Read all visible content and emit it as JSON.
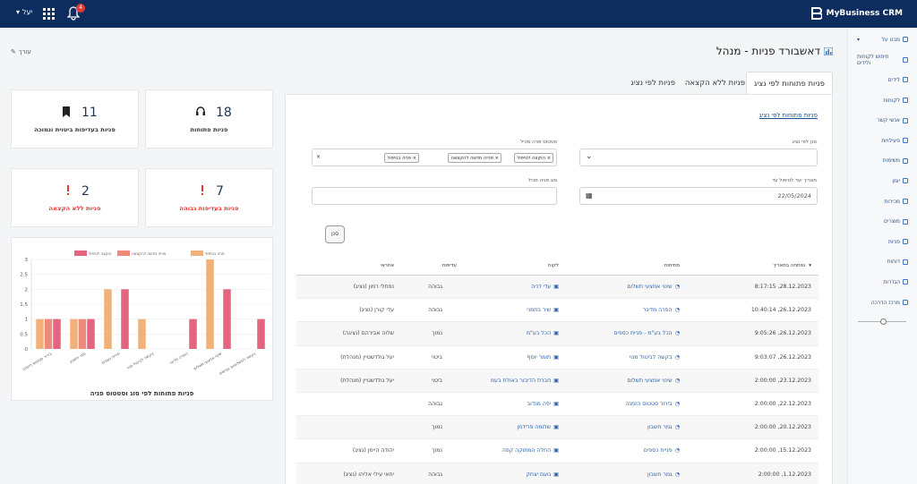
{
  "topbar": {
    "brand": "MyBusiness CRM",
    "user": "יעל",
    "notifications": "4"
  },
  "sidebar": {
    "items": [
      {
        "label": "מבט על",
        "icon": "chart-icon",
        "caret": true
      },
      {
        "label": "חיפוש לקוחות ולידים",
        "icon": "search-icon"
      },
      {
        "label": "לידים",
        "icon": "megaphone-icon"
      },
      {
        "label": "לקוחות",
        "icon": "card-icon"
      },
      {
        "label": "אנשי קשר",
        "icon": "person-icon"
      },
      {
        "label": "פעילויות",
        "icon": "list-icon"
      },
      {
        "label": "משימות",
        "icon": "tasks-icon"
      },
      {
        "label": "יומן",
        "icon": "calendar-icon"
      },
      {
        "label": "מכירות",
        "icon": "exchange-icon"
      },
      {
        "label": "מוצרים",
        "icon": "tag-icon"
      },
      {
        "label": "פניות",
        "icon": "headset-icon"
      },
      {
        "label": "דוחות",
        "icon": "file-icon"
      },
      {
        "label": "הגדרות",
        "icon": "gear-icon"
      },
      {
        "label": "מרכז הדרכה",
        "icon": "help-icon"
      }
    ]
  },
  "page": {
    "title": "דאשבורד פניות - מנהל",
    "edit": "עורך"
  },
  "tabs": [
    "פניות פתוחות לפי נציג",
    "פניות ללא הקצאה",
    "פניות לפי נציג"
  ],
  "panel": {
    "section_title": "פניות פתוחות לפי נציג",
    "filters": {
      "rep_label": "סנן לפי נציג",
      "status_label": "סטטוס פניה מכיל",
      "status_chips": [
        "הוקצה לטיפול",
        "פנייה חדשה להקצאה",
        "פניה בטיפול"
      ],
      "date_label": "תאריך יעד לטיפול עד",
      "date_value": "22/05/2024",
      "type_label": "סוג פניה מכיל",
      "search_button": "סנן"
    },
    "table": {
      "headers": [
        "נפתחה בתאריך",
        "מתיחות",
        "לקוח",
        "עדיפות",
        "אחראי"
      ],
      "rows": [
        {
          "date": "28.12.2023, 8:17:15",
          "subject": "שינוי אמצעי תשלום",
          "customer": "עדי דניה",
          "priority": "גבוהה",
          "owner": "נפתלי רמון (נציג)"
        },
        {
          "date": "26.12.2023, 10:40:14",
          "subject": "הפרה מדיגר",
          "customer": "שיר בחמני",
          "priority": "גבוהה",
          "owner": "עדי קורן (נציג)"
        },
        {
          "date": "26.12.2023, 9:05:26",
          "subject": "הכל בע\"מ - פניית כספים",
          "customer": "הכל בע\"מ",
          "priority": "נמוך",
          "owner": "שלוה אבירהם (נציגה)"
        },
        {
          "date": "26.12.2023, 9:03:07",
          "subject": "בקשה לביטול מנוי",
          "customer": "תומר יוסף",
          "priority": "ביטוי",
          "owner": "יעל גולדשטיין (מנהלת)"
        },
        {
          "date": "23.12.2023, 2:00:00",
          "subject": "שינוי אמצעי תשלום",
          "customer": "חברת הדיבור באולת בעמ",
          "priority": "ביטוי",
          "owner": "יעל גולדשטיין (מנהלת)"
        },
        {
          "date": "22.12.2023, 2:00:00",
          "subject": "בירור סטטוס הזמנה",
          "customer": "יפה מנדוב",
          "priority": "גבוהה",
          "owner": ""
        },
        {
          "date": "20.12.2023, 2:00:00",
          "subject": "גמר חשבון",
          "customer": "שלומה פרידמן",
          "priority": "נמוך",
          "owner": ""
        },
        {
          "date": "15.12.2023, 2:00:00",
          "subject": "פניית כספים",
          "customer": "החלה המתוקה קפה",
          "priority": "נמוך",
          "owner": "יהודה היימן (נציג)"
        },
        {
          "date": "1.12.2023, 2:00:00",
          "subject": "גמר חשבון",
          "customer": "נועם יצחק",
          "priority": "גבוהה",
          "owner": "יחאי עילי אליהו (נציג)"
        }
      ]
    }
  },
  "cards": [
    {
      "value": "11",
      "label": "פניות בעדיפות ביטוית ונמוכה",
      "icon": "bookmark-icon",
      "color": "#1d3557"
    },
    {
      "value": "18",
      "label": "פניות פתוחות",
      "icon": "headset-icon",
      "color": "#1d3557"
    },
    {
      "value": "2",
      "label": "פניות ללא הקצאה",
      "icon": "alert-icon",
      "color": "#e53935"
    },
    {
      "value": "7",
      "label": "פניות בעדיפות גבוהה",
      "icon": "alert-icon",
      "color": "#e53935"
    }
  ],
  "chart_data": {
    "type": "bar",
    "title": "פניות פתוחות לפי סוג וסטטוס פניה",
    "categories": [
      "בירור סטטוס הזמנה",
      "גמר חשבון",
      "פניית כספים",
      "בקשה לביטול מנוי",
      "הפרה מדיגר",
      "שינוי אמצעי תשלום",
      "בקשה לתשלומים גמישים"
    ],
    "series": [
      {
        "name": "פניה בטיפול",
        "color": "#f0b27a",
        "values": [
          1,
          1,
          2,
          1,
          0,
          3,
          0
        ]
      },
      {
        "name": "פנייה חדשה להקצאה",
        "color": "#ee8a7a",
        "values": [
          1,
          1,
          0,
          0,
          0,
          0,
          0
        ]
      },
      {
        "name": "הוקצה לטיפול",
        "color": "#e5647f",
        "values": [
          1,
          1,
          2,
          0,
          1,
          2,
          1
        ]
      }
    ],
    "ylim": [
      0,
      3
    ],
    "yticks": [
      "0",
      "0.5",
      "1",
      "1.5",
      "2",
      "2.5",
      "3"
    ],
    "grid": true,
    "legend": "top"
  }
}
